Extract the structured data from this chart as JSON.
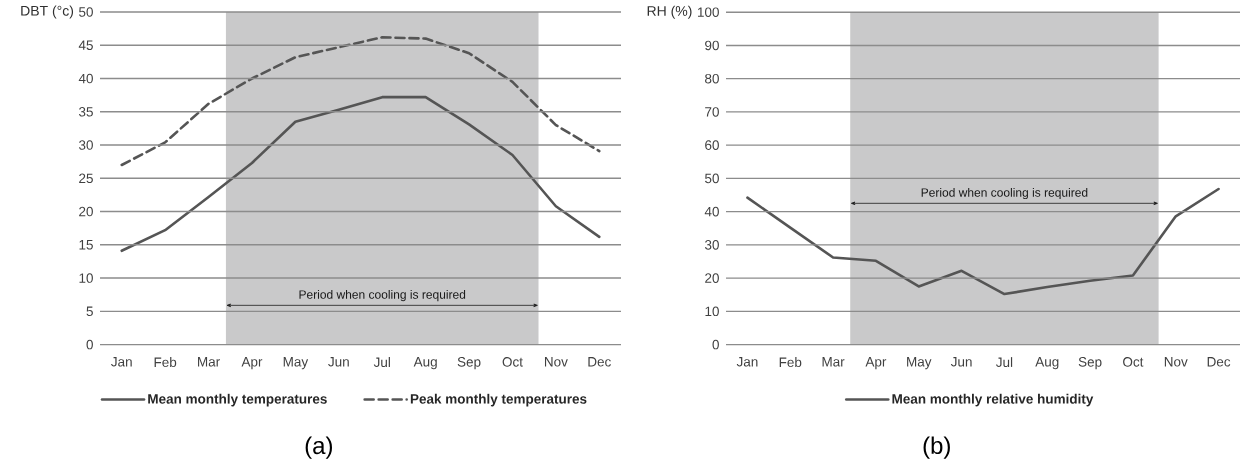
{
  "chart_data": [
    {
      "type": "line",
      "ylabel": "DBT (°c)",
      "categories": [
        "Jan",
        "Feb",
        "Mar",
        "Apr",
        "May",
        "Jun",
        "Jul",
        "Aug",
        "Sep",
        "Oct",
        "Nov",
        "Dec"
      ],
      "series": [
        {
          "name": "Mean monthly temperatures",
          "color": "#555555",
          "line_style": "solid",
          "values": [
            14.1,
            17.2,
            22.2,
            27.3,
            33.5,
            35.3,
            37.2,
            37.2,
            33.1,
            28.5,
            20.8,
            16.2
          ]
        },
        {
          "name": "Peak monthly temperatures",
          "color": "#555555",
          "line_style": "dashed",
          "values": [
            27.0,
            30.4,
            36.2,
            40.0,
            43.2,
            44.7,
            46.2,
            46.0,
            43.8,
            39.5,
            33.0,
            29.1
          ]
        }
      ],
      "ylim": [
        0,
        50
      ],
      "yticks": [
        0,
        5,
        10,
        15,
        20,
        25,
        30,
        35,
        40,
        45,
        50
      ],
      "grid": "y",
      "legend": "bottom",
      "bands": [
        {
          "axis": "x",
          "from": "Apr",
          "to": "Oct",
          "label": "Period when cooling is required",
          "color": "#c9c9ca"
        }
      ],
      "annotations": [
        "(a)"
      ]
    },
    {
      "type": "line",
      "ylabel": "RH (%)",
      "categories": [
        "Jan",
        "Feb",
        "Mar",
        "Apr",
        "May",
        "Jun",
        "Jul",
        "Aug",
        "Sep",
        "Oct",
        "Nov",
        "Dec"
      ],
      "series": [
        {
          "name": "Mean monthly relative humidity",
          "color": "#555555",
          "line_style": "solid",
          "values": [
            44.2,
            35.2,
            26.2,
            25.2,
            17.5,
            22.2,
            15.2,
            17.3,
            19.2,
            20.8,
            38.6,
            46.8
          ]
        }
      ],
      "ylim": [
        0,
        100
      ],
      "yticks": [
        0,
        10,
        20,
        30,
        40,
        50,
        60,
        70,
        80,
        90,
        100
      ],
      "grid": "y",
      "legend": "bottom",
      "bands": [
        {
          "axis": "x",
          "from": "Apr",
          "to": "Oct",
          "label": "Period when cooling is required",
          "color": "#c9c9ca"
        }
      ],
      "annotations": [
        "(b)"
      ]
    }
  ]
}
